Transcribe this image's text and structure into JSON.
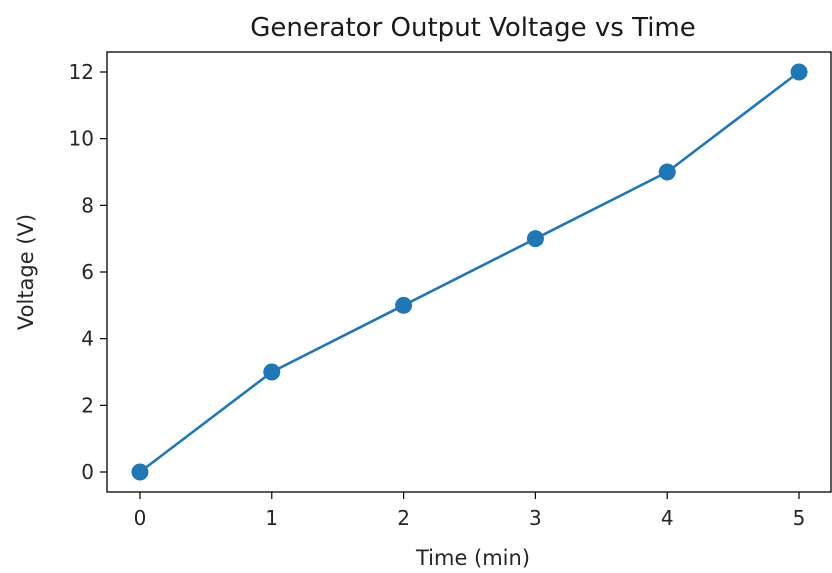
{
  "chart_data": {
    "type": "line",
    "title": "Generator Output Voltage vs Time",
    "xlabel": "Time (min)",
    "ylabel": "Voltage (V)",
    "x": [
      0,
      1,
      2,
      3,
      4,
      5
    ],
    "series": [
      {
        "values": [
          0,
          3,
          5,
          7,
          9,
          12
        ],
        "color": "#1f77b4",
        "marker": "circle"
      }
    ],
    "xlim": [
      -0.25,
      5.25
    ],
    "ylim": [
      -0.6,
      12.6
    ],
    "xticks": [
      0,
      1,
      2,
      3,
      4,
      5
    ],
    "yticks": [
      0,
      2,
      4,
      6,
      8,
      10,
      12
    ],
    "grid": false,
    "legend": "none"
  }
}
